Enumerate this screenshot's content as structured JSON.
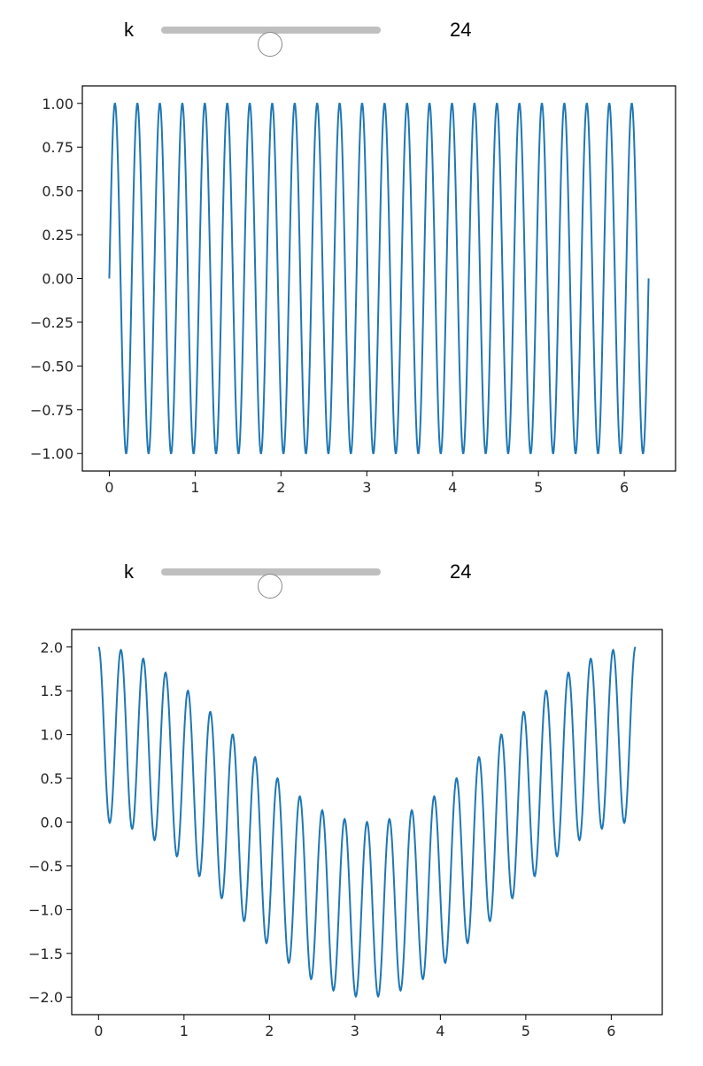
{
  "widgets": [
    {
      "label": "k",
      "value": 24,
      "display": "24",
      "min": 0,
      "max": 48
    },
    {
      "label": "k",
      "value": 24,
      "display": "24",
      "min": 0,
      "max": 48
    }
  ],
  "line_color": "#1f77b4",
  "chart_data": [
    {
      "type": "line",
      "title": "",
      "xlabel": "",
      "ylabel": "",
      "x_range": [
        0,
        6.2832
      ],
      "xlim": [
        -0.314,
        6.597
      ],
      "ylim": [
        -1.1,
        1.1
      ],
      "xticks": [
        0,
        1,
        2,
        3,
        4,
        5,
        6
      ],
      "xtick_labels": [
        "0",
        "1",
        "2",
        "3",
        "4",
        "5",
        "6"
      ],
      "yticks": [
        -1.0,
        -0.75,
        -0.5,
        -0.25,
        0.0,
        0.25,
        0.5,
        0.75,
        1.0
      ],
      "ytick_labels": [
        "−1.00",
        "−0.75",
        "−0.50",
        "−0.25",
        "0.00",
        "0.25",
        "0.50",
        "0.75",
        "1.00"
      ],
      "series": [
        {
          "function": "sin(k*x)",
          "k": 24,
          "samples": 1200
        }
      ],
      "grid": false,
      "legend": false
    },
    {
      "type": "line",
      "title": "",
      "xlabel": "",
      "ylabel": "",
      "x_range": [
        0,
        6.2832
      ],
      "xlim": [
        -0.314,
        6.597
      ],
      "ylim": [
        -2.2,
        2.2
      ],
      "xticks": [
        0,
        1,
        2,
        3,
        4,
        5,
        6
      ],
      "xtick_labels": [
        "0",
        "1",
        "2",
        "3",
        "4",
        "5",
        "6"
      ],
      "yticks": [
        -2.0,
        -1.5,
        -1.0,
        -0.5,
        0.0,
        0.5,
        1.0,
        1.5,
        2.0
      ],
      "ytick_labels": [
        "−2.0",
        "−1.5",
        "−1.0",
        "−0.5",
        "0.0",
        "0.5",
        "1.0",
        "1.5",
        "2.0"
      ],
      "series": [
        {
          "function": "cos(k*x)+cos(x)",
          "k": 24,
          "samples": 1200
        }
      ],
      "grid": false,
      "legend": false
    }
  ]
}
